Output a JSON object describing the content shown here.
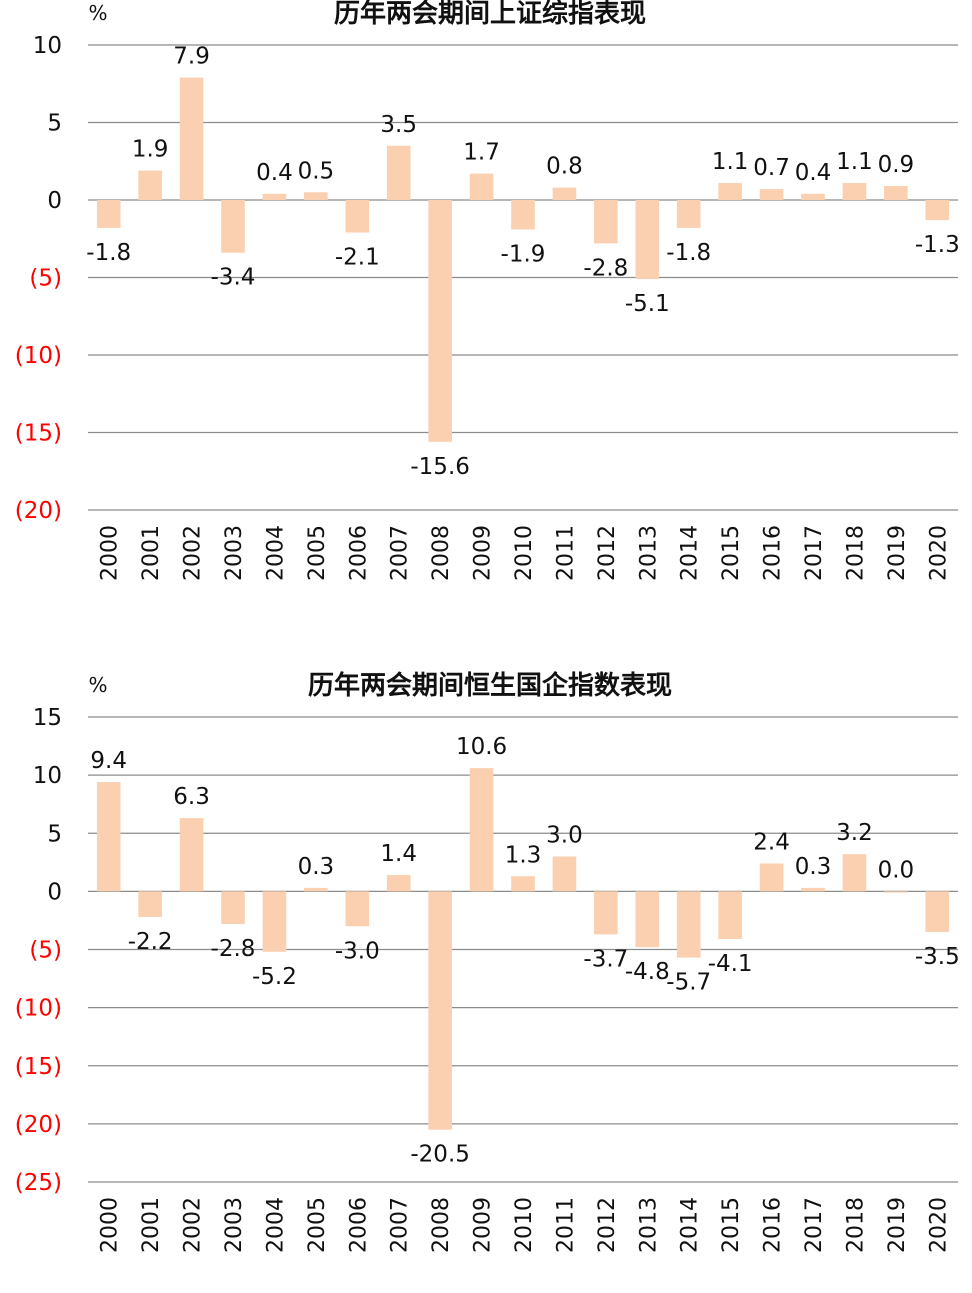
{
  "chart_data": [
    {
      "type": "bar",
      "title": "历年两会期间上证综指表现",
      "unit": "%",
      "categories": [
        "2000",
        "2001",
        "2002",
        "2003",
        "2004",
        "2005",
        "2006",
        "2007",
        "2008",
        "2009",
        "2010",
        "2011",
        "2012",
        "2013",
        "2014",
        "2015",
        "2016",
        "2017",
        "2018",
        "2019",
        "2020"
      ],
      "values": [
        -1.8,
        1.9,
        7.9,
        -3.4,
        0.4,
        0.5,
        -2.1,
        3.5,
        -15.6,
        1.7,
        -1.9,
        0.8,
        -2.8,
        -5.1,
        -1.8,
        1.1,
        0.7,
        0.4,
        1.1,
        0.9,
        -1.3
      ],
      "value_labels": [
        "-1.8",
        "1.9",
        "7.9",
        "-3.4",
        "0.4",
        "0.5",
        "-2.1",
        "3.5",
        "-15.6",
        "1.7",
        "-1.9",
        "0.8",
        "-2.8",
        "-5.1",
        "-1.8",
        "1.1",
        "0.7",
        "0.4",
        "1.1",
        "0.9",
        "-1.3"
      ],
      "ylim": [
        -20,
        10
      ],
      "yticks": [
        10,
        5,
        0,
        -5,
        -10,
        -15,
        -20
      ],
      "ytick_labels": [
        "10",
        "5",
        "0",
        "(5)",
        "(10)",
        "(15)",
        "(20)"
      ],
      "grid": true,
      "colors": {
        "bar": "#FAD0B0",
        "grid": "#8c8c8c",
        "negative_tick": "#ff0000",
        "positive_tick": "#111111"
      }
    },
    {
      "type": "bar",
      "title": "历年两会期间恒生国企指数表现",
      "unit": "%",
      "categories": [
        "2000",
        "2001",
        "2002",
        "2003",
        "2004",
        "2005",
        "2006",
        "2007",
        "2008",
        "2009",
        "2010",
        "2011",
        "2012",
        "2013",
        "2014",
        "2015",
        "2016",
        "2017",
        "2018",
        "2019",
        "2020"
      ],
      "values": [
        9.4,
        -2.2,
        6.3,
        -2.8,
        -5.2,
        0.3,
        -3.0,
        1.4,
        -20.5,
        10.6,
        1.3,
        3.0,
        -3.7,
        -4.8,
        -5.7,
        -4.1,
        2.4,
        0.3,
        3.2,
        0.0,
        -3.5
      ],
      "value_labels": [
        "9.4",
        "-2.2",
        "6.3",
        "-2.8",
        "-5.2",
        "0.3",
        "-3.0",
        "1.4",
        "-20.5",
        "10.6",
        "1.3",
        "3.0",
        "-3.7",
        "-4.8",
        "-5.7",
        "-4.1",
        "2.4",
        "0.3",
        "3.2",
        "0.0",
        "-3.5"
      ],
      "ylim": [
        -25,
        15
      ],
      "yticks": [
        15,
        10,
        5,
        0,
        -5,
        -10,
        -15,
        -20,
        -25
      ],
      "ytick_labels": [
        "15",
        "10",
        "5",
        "0",
        "(5)",
        "(10)",
        "(15)",
        "(20)",
        "(25)"
      ],
      "grid": true,
      "colors": {
        "bar": "#FAD0B0",
        "grid": "#8c8c8c",
        "negative_tick": "#ff0000",
        "positive_tick": "#111111"
      }
    }
  ]
}
